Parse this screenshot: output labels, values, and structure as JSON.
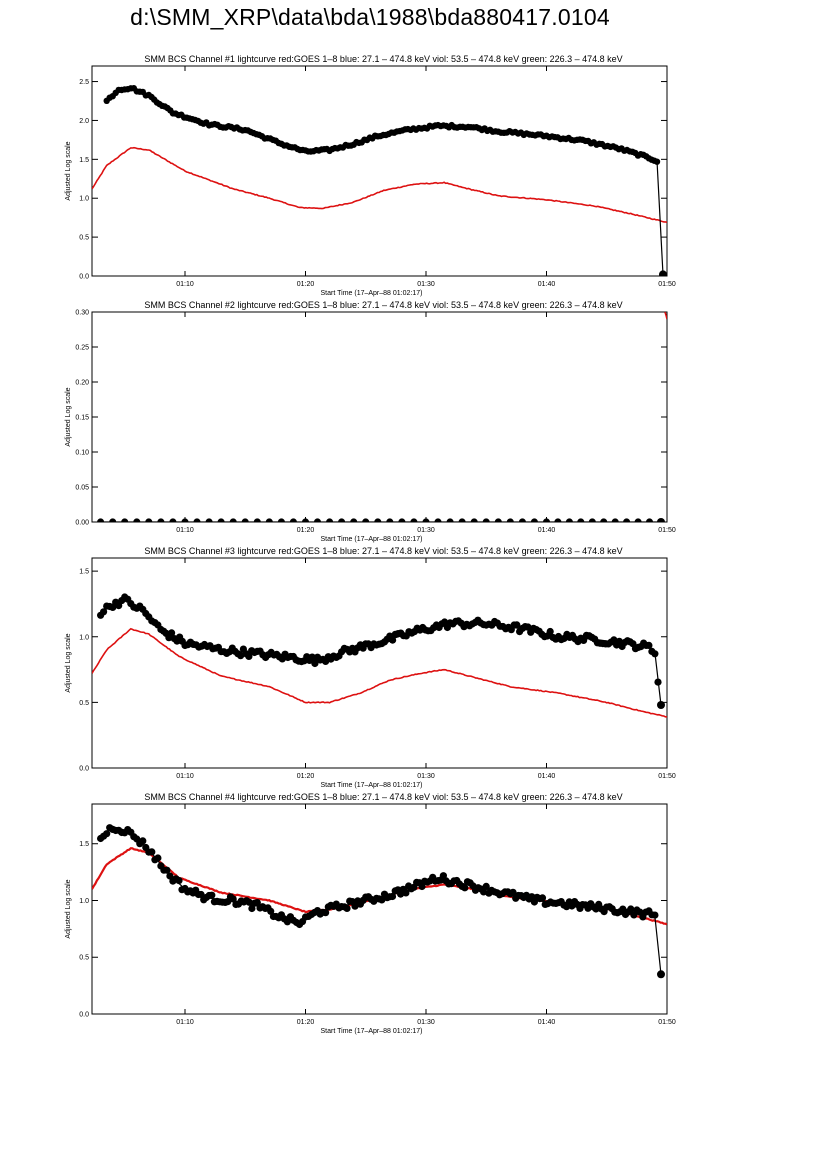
{
  "page_title": "d:\\SMM_XRP\\data\\bda\\1988\\bda880417.0104",
  "colors": {
    "background": "#ffffff",
    "axes": "#000000",
    "goes_series": "#dd1111",
    "bcs_series": "#000000"
  },
  "chart_data": [
    {
      "type": "line",
      "title": "SMM BCS Channel #1 lightcurve  red:GOES 1–8  blue: 27.1 – 474.8 keV  viol: 53.5 – 474.8 keV  green: 226.3 – 474.8 keV",
      "xlabel": "Start Time (17–Apr–88 01:02:17)",
      "ylabel": "Adjusted Log scale",
      "xlim": [
        "01:02:17",
        "01:50:00"
      ],
      "x_ticks": [
        "01:10",
        "01:20",
        "01:30",
        "01:40",
        "01:50"
      ],
      "ylim": [
        0,
        2.7
      ],
      "y_ticks": [
        "0.0",
        "0.5",
        "1.0",
        "1.5",
        "2.0",
        "2.5"
      ],
      "grid": false,
      "series": [
        {
          "color": "#dd1111",
          "marker": "none",
          "x": [
            "01:02:17",
            "01:03:30",
            "01:05:30",
            "01:07:00",
            "01:10:00",
            "01:14:00",
            "01:17:00",
            "01:19:30",
            "01:21:30",
            "01:24:00",
            "01:26:30",
            "01:29:00",
            "01:31:30",
            "01:33:00",
            "01:36:00",
            "01:40:00",
            "01:44:00",
            "01:47:00",
            "01:50:00"
          ],
          "values": [
            1.12,
            1.42,
            1.65,
            1.62,
            1.35,
            1.12,
            1.0,
            0.88,
            0.87,
            0.95,
            1.1,
            1.18,
            1.2,
            1.14,
            1.03,
            0.98,
            0.9,
            0.8,
            0.69
          ]
        },
        {
          "color": "#000000",
          "marker": "circle",
          "x": [
            "01:03:30",
            "01:04:30",
            "01:05:30",
            "01:07:00",
            "01:09:00",
            "01:12:00",
            "01:15:00",
            "01:18:00",
            "01:20:00",
            "01:22:00",
            "01:24:00",
            "01:26:00",
            "01:28:30",
            "01:31:00",
            "01:33:30",
            "01:36:00",
            "01:40:00",
            "01:43:00",
            "01:46:00",
            "01:48:30",
            "01:49:10",
            "01:49:40"
          ],
          "values": [
            2.25,
            2.4,
            2.42,
            2.32,
            2.1,
            1.95,
            1.88,
            1.7,
            1.6,
            1.62,
            1.7,
            1.8,
            1.88,
            1.93,
            1.92,
            1.86,
            1.8,
            1.74,
            1.64,
            1.52,
            1.48,
            0.02
          ]
        }
      ]
    },
    {
      "type": "line",
      "title": "SMM BCS Channel #2 lightcurve  red:GOES 1–8  blue: 27.1 – 474.8 keV  viol: 53.5 – 474.8 keV  green: 226.3 – 474.8 keV",
      "xlabel": "Start Time (17–Apr–88 01:02:17)",
      "ylabel": "Adjusted Log scale",
      "xlim": [
        "01:02:17",
        "01:50:00"
      ],
      "x_ticks": [
        "01:10",
        "01:20",
        "01:30",
        "01:40",
        "01:50"
      ],
      "ylim": [
        0,
        0.3
      ],
      "y_ticks": [
        "0.00",
        "0.05",
        "0.10",
        "0.15",
        "0.20",
        "0.25",
        "0.30"
      ],
      "grid": false,
      "series": [
        {
          "color": "#dd1111",
          "marker": "none",
          "x": [
            "01:49:50",
            "01:50:00"
          ],
          "values": [
            0.3,
            0.29
          ]
        },
        {
          "color": "#000000",
          "marker": "circle",
          "x": [
            "01:03:00",
            "01:06:00",
            "01:10:00",
            "01:20:00",
            "01:30:00",
            "01:40:00",
            "01:49:30"
          ],
          "values": [
            0.0,
            0.0,
            0.0,
            0.0,
            0.0,
            0.0,
            0.0
          ]
        }
      ]
    },
    {
      "type": "line",
      "title": "SMM BCS Channel #3 lightcurve  red:GOES 1–8  blue: 27.1 – 474.8 keV  viol: 53.5 – 474.8 keV  green: 226.3 – 474.8 keV",
      "xlabel": "Start Time (17–Apr–88 01:02:17)",
      "ylabel": "Adjusted Log scale",
      "xlim": [
        "01:02:17",
        "01:50:00"
      ],
      "x_ticks": [
        "01:10",
        "01:20",
        "01:30",
        "01:40",
        "01:50"
      ],
      "ylim": [
        0,
        1.6
      ],
      "y_ticks": [
        "0.0",
        "0.5",
        "1.0",
        "1.5"
      ],
      "grid": false,
      "series": [
        {
          "color": "#dd1111",
          "marker": "none",
          "x": [
            "01:02:17",
            "01:03:30",
            "01:05:30",
            "01:07:00",
            "01:09:30",
            "01:13:00",
            "01:17:00",
            "01:20:00",
            "01:22:00",
            "01:24:30",
            "01:27:00",
            "01:29:30",
            "01:31:30",
            "01:34:00",
            "01:37:00",
            "01:41:00",
            "01:45:00",
            "01:48:00",
            "01:50:00"
          ],
          "values": [
            0.72,
            0.9,
            1.06,
            1.02,
            0.85,
            0.7,
            0.62,
            0.5,
            0.5,
            0.57,
            0.67,
            0.72,
            0.75,
            0.69,
            0.62,
            0.57,
            0.5,
            0.43,
            0.39
          ]
        },
        {
          "color": "#000000",
          "marker": "circle",
          "x": [
            "01:03:00",
            "01:04:00",
            "01:05:00",
            "01:06:30",
            "01:08:00",
            "01:10:00",
            "01:13:00",
            "01:16:00",
            "01:19:00",
            "01:21:00",
            "01:23:00",
            "01:25:00",
            "01:27:00",
            "01:29:30",
            "01:32:00",
            "01:35:00",
            "01:38:00",
            "01:41:00",
            "01:44:00",
            "01:46:30",
            "01:48:30",
            "01:49:00",
            "01:49:30"
          ],
          "values": [
            1.18,
            1.25,
            1.28,
            1.2,
            1.05,
            0.95,
            0.9,
            0.87,
            0.84,
            0.82,
            0.88,
            0.93,
            0.98,
            1.05,
            1.1,
            1.1,
            1.06,
            1.0,
            0.98,
            0.95,
            0.92,
            0.88,
            0.48
          ]
        }
      ]
    },
    {
      "type": "line",
      "title": "SMM BCS Channel #4 lightcurve  red:GOES 1–8  blue: 27.1 – 474.8 keV  viol: 53.5 – 474.8 keV  green: 226.3 – 474.8 keV",
      "xlabel": "Start Time (17–Apr–88 01:02:17)",
      "ylabel": "Adjusted Log scale",
      "xlim": [
        "01:02:17",
        "01:50:00"
      ],
      "x_ticks": [
        "01:10",
        "01:20",
        "01:30",
        "01:40",
        "01:50"
      ],
      "ylim": [
        0,
        1.85
      ],
      "y_ticks": [
        "0.0",
        "0.5",
        "1.0",
        "1.5"
      ],
      "grid": false,
      "series": [
        {
          "color": "#dd1111",
          "marker": "none",
          "x": [
            "01:02:17",
            "01:03:30",
            "01:05:30",
            "01:07:00",
            "01:09:30",
            "01:13:00",
            "01:17:00",
            "01:20:00",
            "01:22:00",
            "01:24:30",
            "01:27:00",
            "01:29:30",
            "01:31:30",
            "01:34:00",
            "01:37:00",
            "01:41:00",
            "01:45:00",
            "01:48:00",
            "01:50:00"
          ],
          "values": [
            1.1,
            1.32,
            1.46,
            1.42,
            1.2,
            1.07,
            1.0,
            0.9,
            0.92,
            0.98,
            1.05,
            1.11,
            1.14,
            1.1,
            1.03,
            0.98,
            0.93,
            0.85,
            0.79
          ]
        },
        {
          "color": "#000000",
          "marker": "circle",
          "x": [
            "01:03:00",
            "01:04:00",
            "01:05:00",
            "01:06:00",
            "01:07:00",
            "01:08:30",
            "01:10:00",
            "01:12:00",
            "01:14:00",
            "01:16:00",
            "01:18:00",
            "01:19:30",
            "01:21:00",
            "01:23:00",
            "01:25:00",
            "01:27:00",
            "01:29:00",
            "01:31:00",
            "01:33:00",
            "01:35:00",
            "01:37:00",
            "01:39:00",
            "01:41:00",
            "01:43:00",
            "01:45:00",
            "01:47:00",
            "01:48:30",
            "01:49:00",
            "01:49:30"
          ],
          "values": [
            1.55,
            1.65,
            1.62,
            1.55,
            1.45,
            1.25,
            1.1,
            1.02,
            1.0,
            0.95,
            0.85,
            0.8,
            0.9,
            0.95,
            1.0,
            1.05,
            1.12,
            1.2,
            1.15,
            1.1,
            1.05,
            1.0,
            0.98,
            0.95,
            0.93,
            0.9,
            0.88,
            0.86,
            0.35
          ]
        }
      ]
    }
  ]
}
